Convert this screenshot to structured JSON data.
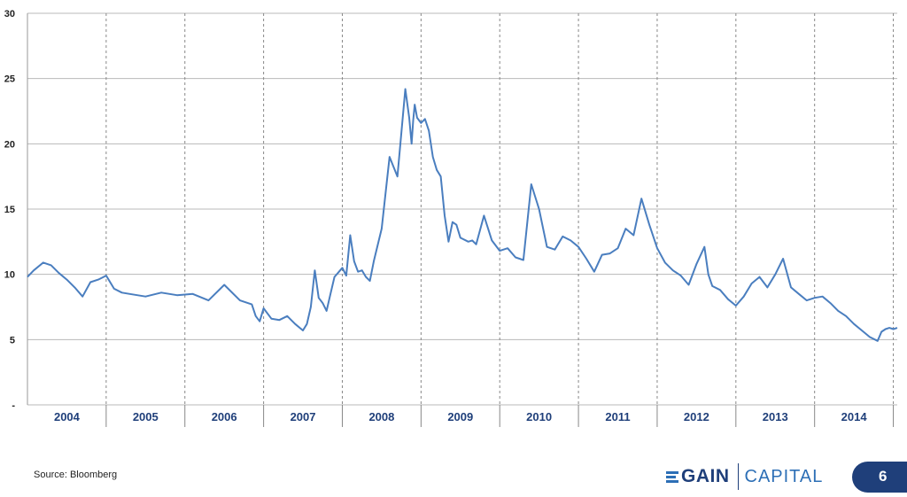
{
  "chart_data": {
    "type": "line",
    "title": "",
    "xlabel": "",
    "ylabel": "",
    "ylim": [
      0,
      30
    ],
    "yticks": [
      "-",
      "5",
      "10",
      "15",
      "20",
      "25",
      "30"
    ],
    "xlim": [
      2003.5,
      2014.55
    ],
    "year_labels": [
      "2004",
      "2005",
      "2006",
      "2007",
      "2008",
      "2009",
      "2010",
      "2011",
      "2012",
      "2013",
      "2014"
    ],
    "grid": "horizontal solid, vertical dashed",
    "line_color": "#4a7ebf",
    "series": [
      {
        "values_desc": "approximate readings of the plotted line",
        "x": [
          2003.5,
          2003.58,
          2003.7,
          2003.8,
          2003.9,
          2004.0,
          2004.1,
          2004.2,
          2004.3,
          2004.4,
          2004.5,
          2004.6,
          2004.7,
          2004.8,
          2005.0,
          2005.2,
          2005.4,
          2005.6,
          2005.8,
          2006.0,
          2006.2,
          2006.35,
          2006.4,
          2006.45,
          2006.5,
          2006.6,
          2006.7,
          2006.8,
          2006.9,
          2007.0,
          2007.05,
          2007.1,
          2007.15,
          2007.2,
          2007.25,
          2007.3,
          2007.35,
          2007.4,
          2007.5,
          2007.55,
          2007.6,
          2007.65,
          2007.7,
          2007.75,
          2007.8,
          2007.85,
          2007.9,
          2008.0,
          2008.1,
          2008.2,
          2008.3,
          2008.35,
          2008.38,
          2008.4,
          2008.42,
          2008.45,
          2008.5,
          2008.55,
          2008.6,
          2008.65,
          2008.7,
          2008.75,
          2008.8,
          2008.85,
          2008.9,
          2008.95,
          2009.0,
          2009.1,
          2009.15,
          2009.2,
          2009.3,
          2009.4,
          2009.5,
          2009.6,
          2009.7,
          2009.8,
          2009.9,
          2010.0,
          2010.1,
          2010.2,
          2010.3,
          2010.4,
          2010.5,
          2010.6,
          2010.7,
          2010.8,
          2010.9,
          2011.0,
          2011.1,
          2011.2,
          2011.3,
          2011.4,
          2011.5,
          2011.6,
          2011.7,
          2011.8,
          2011.9,
          2012.0,
          2012.1,
          2012.15,
          2012.2,
          2012.3,
          2012.4,
          2012.5,
          2012.6,
          2012.7,
          2012.8,
          2012.9,
          2013.0,
          2013.1,
          2013.2,
          2013.3,
          2013.4,
          2013.5,
          2013.6,
          2013.7,
          2013.8,
          2013.9,
          2014.0,
          2014.1,
          2014.2,
          2014.3,
          2014.35,
          2014.4,
          2014.45,
          2014.5,
          2014.55
        ],
        "y": [
          9.8,
          10.3,
          10.9,
          10.7,
          10.1,
          9.6,
          9.0,
          8.3,
          9.4,
          9.6,
          9.9,
          8.9,
          8.6,
          8.5,
          8.3,
          8.6,
          8.4,
          8.5,
          8.0,
          9.2,
          8.0,
          7.7,
          6.8,
          6.4,
          7.4,
          6.6,
          6.5,
          6.8,
          6.2,
          5.7,
          6.2,
          7.5,
          10.3,
          8.2,
          7.8,
          7.2,
          8.5,
          9.8,
          10.5,
          9.9,
          13.0,
          11.0,
          10.2,
          10.3,
          9.8,
          9.5,
          11.0,
          13.5,
          19.0,
          17.5,
          24.2,
          22.0,
          20.0,
          21.8,
          23.0,
          22.0,
          21.6,
          21.9,
          21.0,
          19.0,
          18.0,
          17.5,
          14.5,
          12.5,
          14.0,
          13.8,
          12.8,
          12.5,
          12.6,
          12.3,
          14.5,
          12.6,
          11.8,
          12.0,
          11.3,
          11.1,
          16.9,
          15.0,
          12.1,
          11.9,
          12.9,
          12.6,
          12.1,
          11.2,
          10.2,
          11.5,
          11.6,
          12.0,
          13.5,
          13.0,
          15.8,
          13.8,
          12.0,
          10.9,
          10.3,
          9.9,
          9.2,
          10.8,
          12.1,
          10.0,
          9.1,
          8.8,
          8.1,
          7.6,
          8.3,
          9.3,
          9.8,
          9.0,
          10.0,
          11.2,
          9.0,
          8.5,
          8.0,
          8.2,
          8.3,
          7.8,
          7.2,
          6.8,
          6.2,
          5.7,
          5.2,
          4.9,
          5.6,
          5.8,
          5.9,
          5.8,
          5.9
        ]
      }
    ]
  },
  "footer": {
    "source": "Source: Bloomberg",
    "logo_word1": "GAIN",
    "logo_word2": "CAPITAL",
    "page_number": "6"
  }
}
